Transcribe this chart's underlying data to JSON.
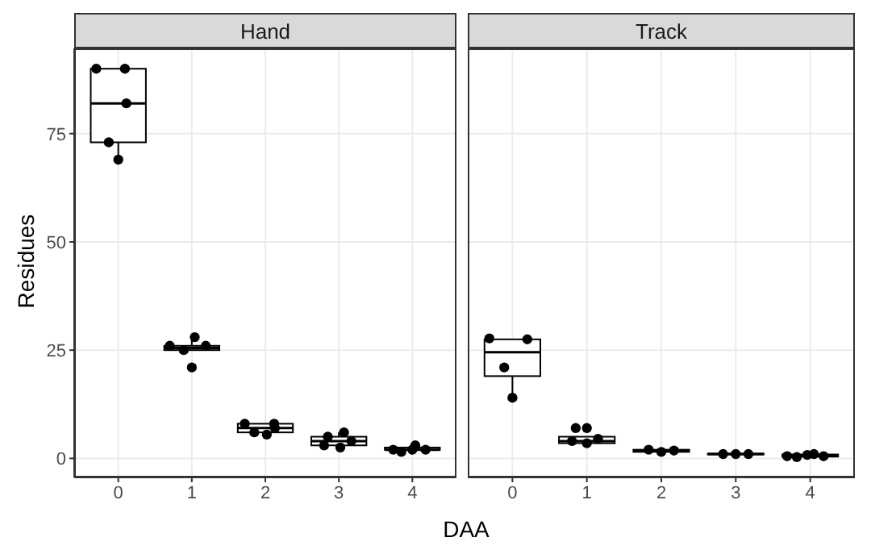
{
  "chart_data": [
    {
      "type": "box",
      "title": "Hand",
      "xlabel": "DAA",
      "ylabel": "Residues",
      "x": [
        0,
        1,
        2,
        3,
        4
      ],
      "xlim": [
        -0.6,
        4.6
      ],
      "xticks": [
        0,
        1,
        2,
        3,
        4
      ],
      "ylim": [
        -4.4,
        94.7
      ],
      "yticks": [
        0,
        25,
        50,
        75
      ],
      "grid": true,
      "legend": false,
      "series": [
        {
          "type": "box",
          "color": "#000000",
          "boxes": [
            {
              "low": 69,
              "q1": 73,
              "median": 82,
              "q3": 90,
              "high": 90
            },
            {
              "low": 25,
              "q1": 25,
              "median": 25.5,
              "q3": 26,
              "high": 28
            },
            {
              "low": 5.5,
              "q1": 6,
              "median": 7,
              "q3": 8,
              "high": 8
            },
            {
              "low": 2.5,
              "q1": 3,
              "median": 4,
              "q3": 5,
              "high": 6
            },
            {
              "low": 1.5,
              "q1": 2,
              "median": 2,
              "q3": 2.5,
              "high": 3
            }
          ]
        },
        {
          "type": "scatter",
          "color": "#000000",
          "marker": "circle",
          "x": [
            -0.3,
            0.09,
            0.11,
            -0.13,
            0,
            0.7,
            1.04,
            0.89,
            1,
            1.19,
            1.72,
            1.85,
            2.02,
            2.12,
            2.13,
            2.85,
            2.8,
            3.02,
            3.07,
            3.17,
            3.74,
            3.85,
            4,
            4.04,
            4.18
          ],
          "values": [
            90,
            90,
            82,
            73,
            69,
            26,
            28,
            25,
            21,
            26,
            8,
            6,
            5.5,
            8,
            7,
            5,
            3,
            2.5,
            6,
            4,
            2,
            1.5,
            2,
            3,
            2
          ]
        }
      ]
    },
    {
      "type": "box",
      "title": "Track",
      "x": [
        0,
        1,
        2,
        3,
        4
      ],
      "xlim": [
        -0.6,
        4.6
      ],
      "xticks": [
        0,
        1,
        2,
        3,
        4
      ],
      "ylim": [
        -4.4,
        94.7
      ],
      "yticks": [
        0,
        25,
        50,
        75
      ],
      "tick_labels": "x",
      "grid": true,
      "legend": false,
      "series": [
        {
          "type": "box",
          "color": "#000000",
          "boxes": [
            {
              "low": 14,
              "q1": 19,
              "median": 24.5,
              "q3": 27.5,
              "high": 27.5
            },
            {
              "low": 3.5,
              "q1": 3.5,
              "median": 4,
              "q3": 5,
              "high": 5
            },
            {
              "low": 1.5,
              "q1": 1.5,
              "median": 1.8,
              "q3": 2,
              "high": 2
            },
            {
              "low": 0.8,
              "q1": 0.9,
              "median": 1,
              "q3": 1.1,
              "high": 1.2
            },
            {
              "low": 0.3,
              "q1": 0.4,
              "median": 0.6,
              "q3": 0.9,
              "high": 1
            }
          ]
        },
        {
          "type": "scatter",
          "color": "#000000",
          "marker": "circle",
          "x": [
            -0.31,
            0.2,
            -0.11,
            0,
            0.85,
            1,
            0.8,
            1,
            1.15,
            1.83,
            2,
            2.17,
            2.83,
            3,
            3.17,
            3.69,
            3.82,
            3.96,
            4.05,
            4.18
          ],
          "values": [
            27.7,
            27.5,
            21,
            14,
            7,
            7,
            4,
            3.5,
            4.5,
            2,
            1.5,
            1.8,
            1,
            1,
            1,
            0.5,
            0.3,
            0.8,
            1,
            0.5
          ]
        }
      ]
    }
  ]
}
